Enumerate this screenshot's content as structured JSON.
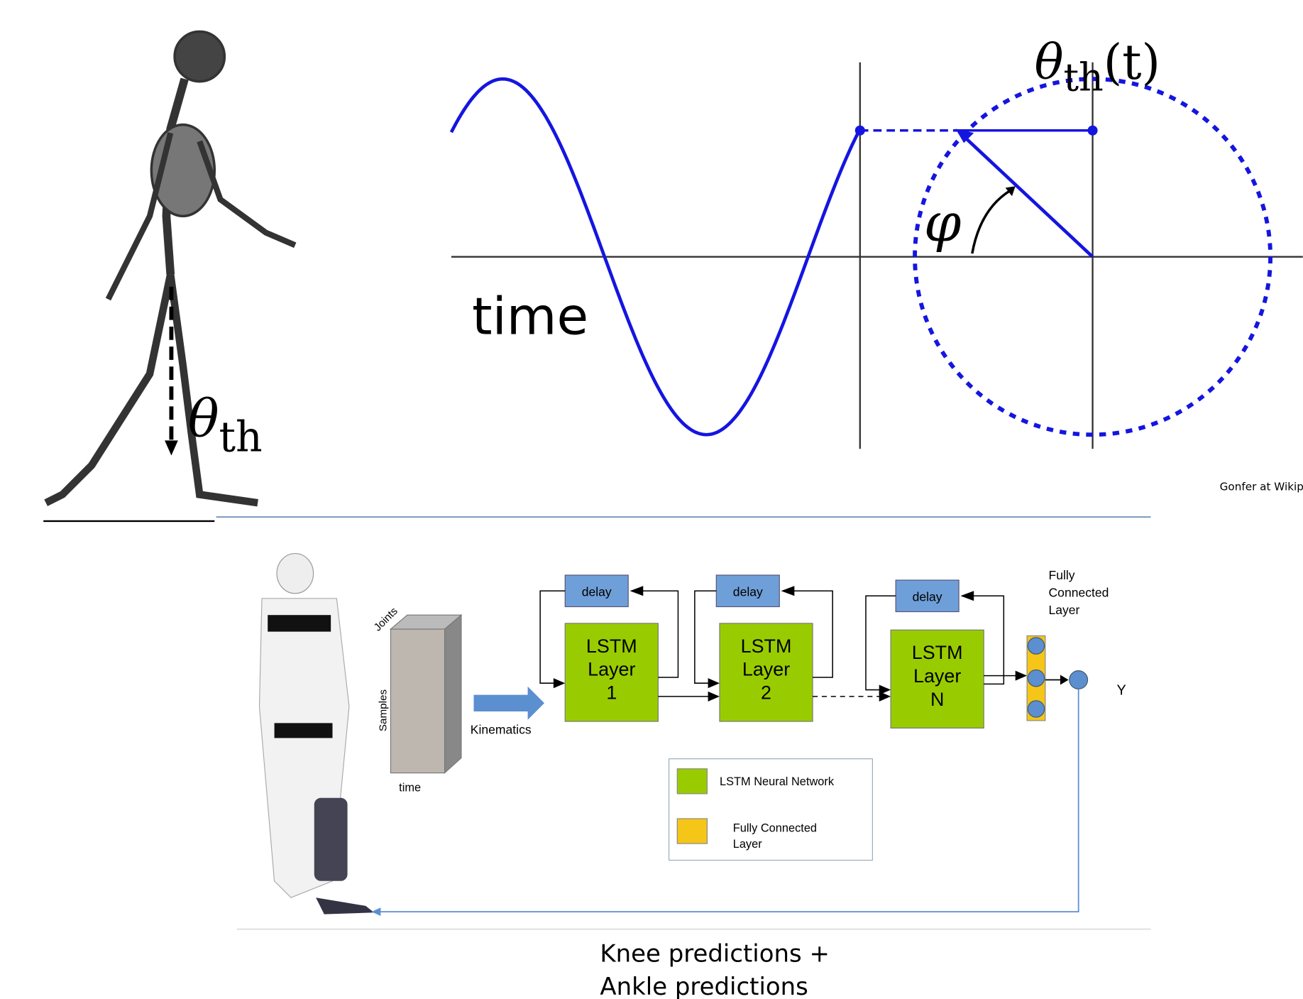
{
  "skeleton": {
    "angle_symbol": "θ",
    "angle_subscript": "th"
  },
  "phase_plot": {
    "signal_symbol": "θ",
    "signal_subscript": "th",
    "signal_argument": "(t)",
    "time_label": "time",
    "phase_label": "φ",
    "credit": "Gonfer at Wikip"
  },
  "network": {
    "input_axes": [
      "Joints",
      "Samples",
      "time"
    ],
    "input_arrow_label": "Kinematics",
    "layers": [
      {
        "delay": "delay",
        "lines": [
          "LSTM",
          "Layer",
          "1"
        ]
      },
      {
        "delay": "delay",
        "lines": [
          "LSTM",
          "Layer",
          "2"
        ]
      },
      {
        "delay": "delay",
        "lines": [
          "LSTM",
          "Layer",
          "N"
        ]
      }
    ],
    "fully_connected_title": [
      "Fully",
      "Connected",
      "Layer"
    ],
    "output": "Y",
    "legend": [
      {
        "lines": [
          "LSTM Neural Network"
        ]
      },
      {
        "lines": [
          "Fully Connected",
          "Layer"
        ]
      }
    ]
  },
  "caption": [
    "Knee predictions +",
    "Ankle predictions"
  ]
}
